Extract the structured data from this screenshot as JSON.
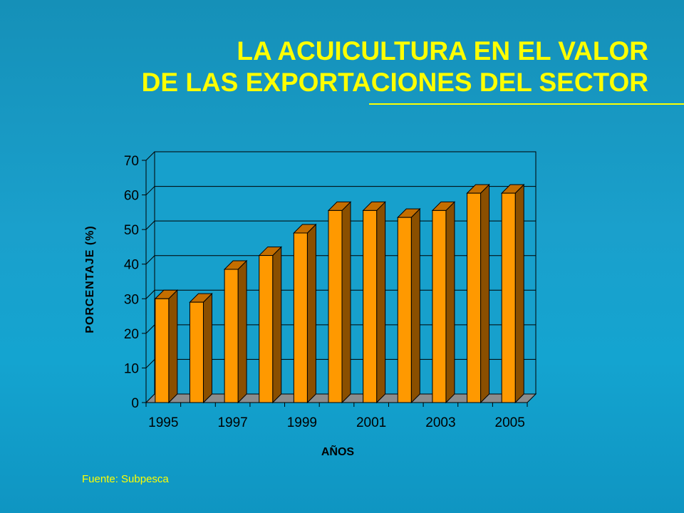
{
  "title": {
    "line1": "LA ACUICULTURA EN EL VALOR",
    "line2": "DE LAS EXPORTACIONES DEL SECTOR"
  },
  "source": "Fuente: Subpesca",
  "colors": {
    "title": "#ffff00",
    "bar_front": "#ff9900",
    "bar_side": "#8a4f00",
    "bar_top": "#c46e00",
    "floor": "#8c8c8c",
    "plot_bg": "#17a0cc"
  },
  "chart_data": {
    "type": "bar",
    "categories": [
      "1995",
      "1996",
      "1997",
      "1998",
      "1999",
      "2000",
      "2001",
      "2002",
      "2003",
      "2004",
      "2005"
    ],
    "values": [
      30,
      29,
      38.5,
      42.5,
      49,
      55.5,
      55.5,
      53.5,
      55.5,
      60.5,
      60.5
    ],
    "tick_labels_x": [
      "1995",
      "1997",
      "1999",
      "2001",
      "2003",
      "2005"
    ],
    "tick_labels_y": [
      "0",
      "10",
      "20",
      "30",
      "40",
      "50",
      "60",
      "70"
    ],
    "xlabel": "AÑOS",
    "ylabel": "PORCENTAJE (%)",
    "ylim": [
      0,
      70
    ],
    "grid": true,
    "style": "3d-column"
  }
}
